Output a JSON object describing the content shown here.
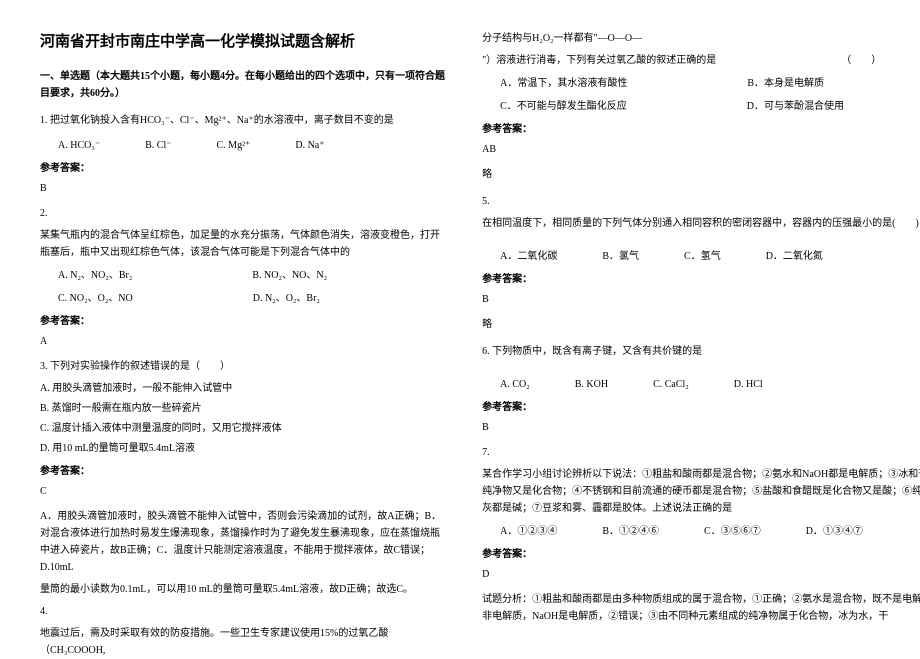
{
  "title": "河南省开封市南庄中学高一化学模拟试题含解析",
  "section1_head": "一、单选题（本大题共15个小题，每小题4分。在每小题给出的四个选项中，只有一项符合题目要求，共60分。）",
  "q1": "1. 把过氧化钠投入含有HCO₃⁻、Cl⁻、Mg²⁺、Na⁺的水溶液中，离子数目不变的是",
  "q1a": "A. HCO₃⁻",
  "q1b": "B. Cl⁻",
  "q1c": "C. Mg²⁺",
  "q1d": "D. Na⁺",
  "ans_label": "参考答案：",
  "q1_ans": "B",
  "q2_num": "2.",
  "q2_text": "某集气瓶内的混合气体呈红棕色，加足量的水充分振荡，气体颜色消失，溶液变橙色，打开瓶塞后，瓶中又出现红棕色气体，该混合气体可能是下列混合气体中的",
  "q2a": "A. N₂、NO₂、Br₂",
  "q2b": "B. NO₂、NO、N₂",
  "q2c": "C. NO₂、O₂、NO",
  "q2d": "D. N₂、O₂、Br₂",
  "q2_ans": "A",
  "q3_num": "3. 下列对实验操作的叙述错误的是（　　）",
  "q3a": "A. 用胶头滴管加液时，一般不能伸入试管中",
  "q3b": "B. 蒸馏时一般需在瓶内放一些碎瓷片",
  "q3c": "C. 温度计插入液体中测量温度的同时，又用它搅拌液体",
  "q3d": "D. 用10 mL的量筒可量取5.4mL溶液",
  "q3_ans": "C",
  "q3_explain": "A．用胶头滴管加液时，胶头滴管不能伸入试管中，否则会污染滴加的试剂，故A正确；B．对混合液体进行加热时易发生爆沸现象，蒸馏操作时为了避免发生暴沸现象，应在蒸馏烧瓶中进入碎瓷片，故B正确；C．温度计只能测定溶液温度，不能用于搅拌液体，故C错误；D.10mL",
  "q3_explain2": "量筒的最小读数为0.1mL，可以用10 mL的量筒可量取5.4mL溶液，故D正确；故选C。",
  "q4_num": "4.",
  "q4_text": "地震过后，需及时采取有效的防疫措施。一些卫生专家建议使用15%的过氧乙酸（CH₃COOOH,",
  "q4_text2": "分子结构与H₂O₂一样都有\"—O—O—",
  "q4_text3": "\"）溶液进行消毒，下列有关过氧乙酸的叙述正确的是　　　　　　　　　　　　　（　　）",
  "q4a": "A．常温下，其水溶液有酸性",
  "q4b": "B．本身是电解质",
  "q4c": "C．不可能与醇发生酯化反应",
  "q4d": "D．可与苯酚混合使用",
  "q4_ans": "AB",
  "q4_exp": "略",
  "q5_num": "5.",
  "q5_text": "在相同温度下，相同质量的下列气体分别通入相同容积的密闭容器中，容器内的压强最小的是(　　)",
  "q5a": "A．二氧化碳",
  "q5b": "B．氯气",
  "q5c": "C．氢气",
  "q5d": "D．二氧化氮",
  "q5_ans": "B",
  "q5_exp": "略",
  "q6": "6. 下列物质中，既含有离子键，又含有共价键的是",
  "q6a": "A. CO₂",
  "q6b": "B. KOH",
  "q6c": "C. CaCl₂",
  "q6d": "D. HCl",
  "q6_ans": "B",
  "q7_num": "7.",
  "q7_text": "某合作学习小组讨论辨析以下说法：①粗盐和酸雨都是混合物；②氨水和NaOH都是电解质；③冰和干冰既是纯净物又是化合物；④不锈钢和目前流通的硬币都是混合物；⑤盐酸和食醋既是化合物又是酸；⑥纯碱和熟石灰都是碱；⑦豆浆和雾、霾都是胶体。上述说法正确的是",
  "q7a": "A．①②③④",
  "q7b": "B．①②④⑥",
  "q7c": "C．③⑤⑥⑦",
  "q7d": "D．①③④⑦",
  "q7_ans": "D",
  "q7_exp": "试题分析：①粗盐和酸雨都是由多种物质组成的属于混合物，①正确；②氨水是混合物，既不是电解质也不是非电解质，NaOH是电解质，②错误；③由不同种元素组成的纯净物属于化合物，冰为水，干"
}
